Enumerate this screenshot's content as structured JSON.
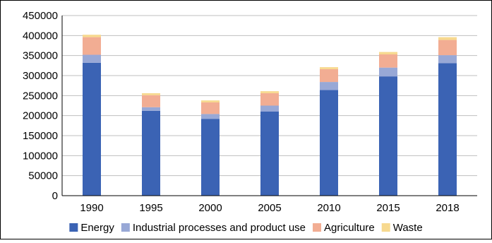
{
  "chart_data": {
    "type": "bar",
    "stacked": true,
    "categories": [
      "1990",
      "1995",
      "2000",
      "2005",
      "2010",
      "2015",
      "2018"
    ],
    "series": [
      {
        "name": "Energy",
        "color": "#3b63b4",
        "values": [
          332000,
          212000,
          192000,
          210000,
          264000,
          298000,
          331000
        ]
      },
      {
        "name": "Industrial processes and product use",
        "color": "#98a8d6",
        "values": [
          20000,
          9000,
          12000,
          15000,
          20000,
          22000,
          20000
        ]
      },
      {
        "name": "Agriculture",
        "color": "#f2ad93",
        "values": [
          44000,
          30000,
          29000,
          31000,
          32000,
          33000,
          38000
        ]
      },
      {
        "name": "Waste",
        "color": "#f7d98f",
        "values": [
          6000,
          5000,
          5000,
          5000,
          5000,
          6000,
          7000
        ]
      }
    ],
    "yticks": [
      "0",
      "50000",
      "100000",
      "150000",
      "200000",
      "250000",
      "300000",
      "350000",
      "400000",
      "450000"
    ],
    "ylim": [
      0,
      450000
    ],
    "grid": true,
    "legend": "bottom",
    "title": "",
    "xlabel": "",
    "ylabel": ""
  }
}
